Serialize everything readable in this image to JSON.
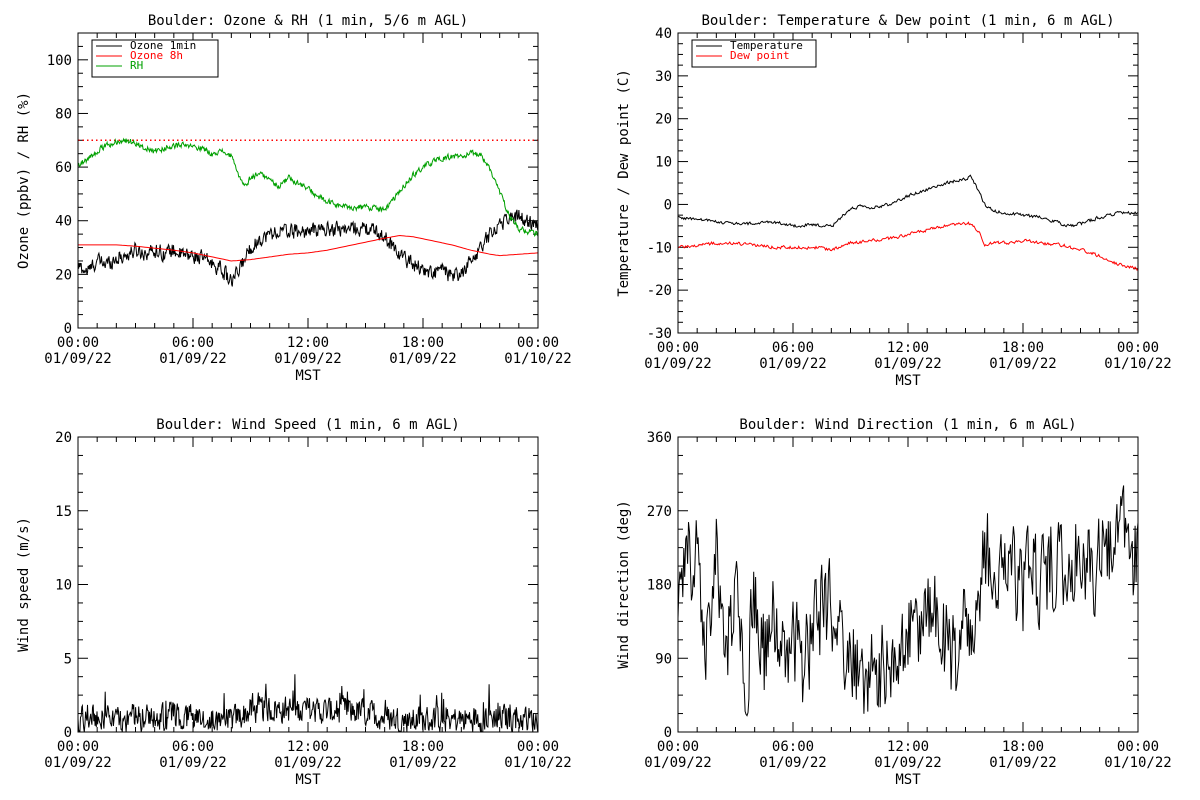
{
  "chart_data": [
    {
      "id": "ozone",
      "type": "line",
      "title": "Boulder: Ozone & RH (1 min, 5/6 m AGL)",
      "ylabel": "Ozone (ppbv) / RH (%)",
      "xlabel": "MST",
      "xlim": [
        0,
        24
      ],
      "ylim": [
        0,
        110
      ],
      "yticks": [
        0,
        20,
        40,
        60,
        80,
        100
      ],
      "legend": "top-left",
      "reference_line": {
        "value": 70,
        "color": "#ff0000",
        "style": "dotted"
      },
      "series": [
        {
          "name": "Ozone 1min",
          "color": "#000000",
          "noise": 2.6,
          "step": 0.033,
          "points": [
            [
              0,
              23
            ],
            [
              0.5,
              21
            ],
            [
              1,
              25
            ],
            [
              1.5,
              24
            ],
            [
              2,
              26
            ],
            [
              2.5,
              27
            ],
            [
              3,
              29
            ],
            [
              3.5,
              28
            ],
            [
              4,
              29
            ],
            [
              4.5,
              28
            ],
            [
              5,
              29
            ],
            [
              5.5,
              27
            ],
            [
              6,
              27
            ],
            [
              6.5,
              26
            ],
            [
              7,
              24
            ],
            [
              7.5,
              22
            ],
            [
              8,
              17
            ],
            [
              8.3,
              20
            ],
            [
              8.7,
              26
            ],
            [
              9,
              30
            ],
            [
              9.5,
              33
            ],
            [
              10,
              35
            ],
            [
              10.5,
              36
            ],
            [
              11,
              36
            ],
            [
              12,
              36
            ],
            [
              13,
              37
            ],
            [
              14,
              37
            ],
            [
              15,
              37
            ],
            [
              15.5,
              36
            ],
            [
              16,
              34
            ],
            [
              16.5,
              30
            ],
            [
              17,
              26
            ],
            [
              17.5,
              24
            ],
            [
              18,
              22
            ],
            [
              18.5,
              20
            ],
            [
              19,
              22
            ],
            [
              19.5,
              19
            ],
            [
              20,
              20
            ],
            [
              20.5,
              25
            ],
            [
              21,
              30
            ],
            [
              21.5,
              35
            ],
            [
              22,
              39
            ],
            [
              22.5,
              41
            ],
            [
              23,
              42
            ],
            [
              23.5,
              39
            ],
            [
              24,
              39
            ]
          ]
        },
        {
          "name": "Ozone 8h",
          "color": "#ff0000",
          "noise": 0,
          "step": 0.1,
          "points": [
            [
              0,
              31
            ],
            [
              2,
              31
            ],
            [
              3,
              30.5
            ],
            [
              5,
              29
            ],
            [
              6,
              28
            ],
            [
              7,
              26.5
            ],
            [
              8,
              25
            ],
            [
              9,
              25.5
            ],
            [
              10,
              26.5
            ],
            [
              11,
              27.5
            ],
            [
              12,
              28
            ],
            [
              13,
              29
            ],
            [
              14,
              30.5
            ],
            [
              15,
              32
            ],
            [
              16,
              33.5
            ],
            [
              16.8,
              34.5
            ],
            [
              17.5,
              34
            ],
            [
              18.5,
              32.5
            ],
            [
              19.5,
              31
            ],
            [
              20.5,
              29
            ],
            [
              21.5,
              27.5
            ],
            [
              22,
              27
            ],
            [
              23,
              27.5
            ],
            [
              24,
              28
            ]
          ]
        },
        {
          "name": "RH",
          "color": "#00a000",
          "noise": 1.0,
          "step": 0.033,
          "points": [
            [
              0,
              61
            ],
            [
              0.5,
              63
            ],
            [
              1,
              66
            ],
            [
              1.5,
              68
            ],
            [
              2,
              69.5
            ],
            [
              2.5,
              70
            ],
            [
              3,
              69
            ],
            [
              3.5,
              67
            ],
            [
              4,
              66
            ],
            [
              4.5,
              67
            ],
            [
              5,
              68
            ],
            [
              5.5,
              68
            ],
            [
              6,
              67.5
            ],
            [
              6.5,
              67
            ],
            [
              7,
              65
            ],
            [
              7.5,
              66
            ],
            [
              8,
              64
            ],
            [
              8.3,
              58
            ],
            [
              8.7,
              53
            ],
            [
              9,
              56
            ],
            [
              9.5,
              58
            ],
            [
              10,
              55
            ],
            [
              10.5,
              53
            ],
            [
              11,
              56
            ],
            [
              11.5,
              54
            ],
            [
              12,
              52
            ],
            [
              12.5,
              49
            ],
            [
              13,
              47
            ],
            [
              13.5,
              46
            ],
            [
              14,
              45
            ],
            [
              14.5,
              45
            ],
            [
              15,
              45
            ],
            [
              15.5,
              45
            ],
            [
              16,
              44
            ],
            [
              16.5,
              48
            ],
            [
              17,
              53
            ],
            [
              17.5,
              57
            ],
            [
              18,
              60
            ],
            [
              18.5,
              62
            ],
            [
              19,
              63
            ],
            [
              19.5,
              64
            ],
            [
              20,
              64
            ],
            [
              20.5,
              65
            ],
            [
              21,
              65
            ],
            [
              21.5,
              59
            ],
            [
              22,
              51
            ],
            [
              22.5,
              42
            ],
            [
              23,
              37
            ],
            [
              23.5,
              36
            ],
            [
              24,
              35
            ]
          ]
        }
      ]
    },
    {
      "id": "temp",
      "type": "line",
      "title": "Boulder: Temperature & Dew point (1 min, 6 m AGL)",
      "ylabel": "Temperature / Dew point (C)",
      "xlabel": "MST",
      "xlim": [
        0,
        24
      ],
      "ylim": [
        -30,
        40
      ],
      "yticks": [
        -30,
        -20,
        -10,
        0,
        10,
        20,
        30,
        40
      ],
      "legend": "top-left",
      "series": [
        {
          "name": "Temperature",
          "color": "#000000",
          "noise": 0.35,
          "step": 0.05,
          "points": [
            [
              0,
              -3
            ],
            [
              1,
              -3.5
            ],
            [
              2,
              -4
            ],
            [
              3,
              -4.5
            ],
            [
              4,
              -4.5
            ],
            [
              5,
              -4
            ],
            [
              6,
              -5
            ],
            [
              7,
              -4.8
            ],
            [
              8,
              -5.2
            ],
            [
              8.5,
              -3
            ],
            [
              9,
              -1
            ],
            [
              9.5,
              -0.5
            ],
            [
              10,
              -1
            ],
            [
              10.5,
              -0.5
            ],
            [
              11,
              0
            ],
            [
              11.5,
              1
            ],
            [
              12,
              2
            ],
            [
              13,
              3.5
            ],
            [
              14,
              5
            ],
            [
              15,
              6
            ],
            [
              15.3,
              6.5
            ],
            [
              15.7,
              3
            ],
            [
              16,
              0
            ],
            [
              16.5,
              -1.5
            ],
            [
              17,
              -2
            ],
            [
              18,
              -2.5
            ],
            [
              19,
              -3
            ],
            [
              20,
              -4.5
            ],
            [
              20.5,
              -5
            ],
            [
              21,
              -4.5
            ],
            [
              22,
              -3
            ],
            [
              23,
              -2
            ],
            [
              24,
              -2
            ]
          ]
        },
        {
          "name": "Dew point",
          "color": "#ff0000",
          "noise": 0.35,
          "step": 0.05,
          "points": [
            [
              0,
              -10
            ],
            [
              1,
              -9.5
            ],
            [
              2,
              -9
            ],
            [
              3,
              -9
            ],
            [
              4,
              -9.5
            ],
            [
              5,
              -10
            ],
            [
              6,
              -10
            ],
            [
              7,
              -10
            ],
            [
              8,
              -10.5
            ],
            [
              8.5,
              -10
            ],
            [
              9,
              -9
            ],
            [
              10,
              -8.5
            ],
            [
              11,
              -8
            ],
            [
              12,
              -7
            ],
            [
              13,
              -6
            ],
            [
              14,
              -5
            ],
            [
              15,
              -4.5
            ],
            [
              15.3,
              -4.5
            ],
            [
              15.7,
              -6.5
            ],
            [
              16,
              -9.5
            ],
            [
              16.5,
              -9
            ],
            [
              17,
              -9
            ],
            [
              18,
              -8.5
            ],
            [
              19,
              -9
            ],
            [
              20,
              -9.5
            ],
            [
              21,
              -10.5
            ],
            [
              22,
              -12
            ],
            [
              23,
              -14
            ],
            [
              24,
              -15
            ]
          ]
        }
      ]
    },
    {
      "id": "windspeed",
      "type": "line",
      "title": "Boulder: Wind Speed (1 min, 6 m AGL)",
      "ylabel": "Wind speed (m/s)",
      "xlabel": "MST",
      "xlim": [
        0,
        24
      ],
      "ylim": [
        0,
        20
      ],
      "yticks": [
        0,
        5,
        10,
        15,
        20
      ],
      "series": [
        {
          "name": "",
          "color": "#000000",
          "noise": 0.85,
          "step": 0.033,
          "floor": 0,
          "points": [
            [
              0,
              0.8
            ],
            [
              1,
              1.0
            ],
            [
              2,
              0.8
            ],
            [
              3,
              1.0
            ],
            [
              4,
              0.9
            ],
            [
              5,
              1.1
            ],
            [
              6,
              1.0
            ],
            [
              7,
              1.0
            ],
            [
              8,
              0.8
            ],
            [
              9,
              1.4
            ],
            [
              10,
              1.6
            ],
            [
              11,
              1.5
            ],
            [
              12,
              1.5
            ],
            [
              13,
              1.4
            ],
            [
              14,
              1.5
            ],
            [
              15,
              1.3
            ],
            [
              16,
              1.0
            ],
            [
              17,
              0.8
            ],
            [
              18,
              0.8
            ],
            [
              19,
              0.9
            ],
            [
              20,
              0.8
            ],
            [
              21,
              1.0
            ],
            [
              22,
              1.0
            ],
            [
              23,
              0.9
            ],
            [
              24,
              0.8
            ]
          ]
        }
      ]
    },
    {
      "id": "winddir",
      "type": "line",
      "title": "Boulder: Wind Direction (1 min, 6 m AGL)",
      "ylabel": "Wind direction (deg)",
      "xlabel": "MST",
      "xlim": [
        0,
        24
      ],
      "ylim": [
        0,
        360
      ],
      "yticks": [
        0,
        90,
        180,
        270,
        360
      ],
      "series": [
        {
          "name": "",
          "color": "#000000",
          "noise": 55,
          "step": 0.05,
          "floor": 0,
          "ceil": 360,
          "points": [
            [
              0,
              150
            ],
            [
              0.5,
              210
            ],
            [
              1,
              230
            ],
            [
              1.5,
              120
            ],
            [
              2,
              210
            ],
            [
              2.5,
              90
            ],
            [
              3,
              180
            ],
            [
              3.5,
              60
            ],
            [
              4,
              170
            ],
            [
              4.5,
              90
            ],
            [
              5,
              140
            ],
            [
              5.5,
              80
            ],
            [
              6,
              120
            ],
            [
              6.5,
              60
            ],
            [
              7,
              130
            ],
            [
              7.5,
              150
            ],
            [
              8,
              140
            ],
            [
              8.5,
              110
            ],
            [
              9,
              90
            ],
            [
              9.5,
              80
            ],
            [
              10,
              70
            ],
            [
              10.5,
              60
            ],
            [
              11,
              100
            ],
            [
              11.5,
              90
            ],
            [
              12,
              110
            ],
            [
              12.5,
              130
            ],
            [
              13,
              130
            ],
            [
              13.5,
              140
            ],
            [
              14,
              110
            ],
            [
              14.5,
              90
            ],
            [
              15,
              130
            ],
            [
              15.5,
              90
            ],
            [
              16,
              220
            ],
            [
              16.5,
              210
            ],
            [
              17,
              190
            ],
            [
              17.5,
              200
            ],
            [
              18,
              170
            ],
            [
              18.5,
              190
            ],
            [
              19,
              180
            ],
            [
              19.5,
              210
            ],
            [
              20,
              190
            ],
            [
              20.5,
              210
            ],
            [
              21,
              230
            ],
            [
              21.5,
              200
            ],
            [
              22,
              210
            ],
            [
              22.5,
              230
            ],
            [
              23,
              240
            ],
            [
              23.5,
              240
            ],
            [
              24,
              190
            ]
          ]
        }
      ]
    }
  ],
  "xticks": [
    {
      "time": "00:00",
      "date": "01/09/22"
    },
    {
      "time": "06:00",
      "date": "01/09/22"
    },
    {
      "time": "12:00",
      "date": "01/09/22"
    },
    {
      "time": "18:00",
      "date": "01/09/22"
    },
    {
      "time": "00:00",
      "date": "01/10/22"
    }
  ]
}
